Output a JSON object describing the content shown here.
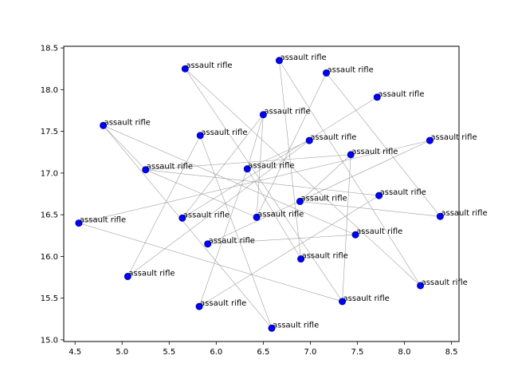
{
  "chart_data": {
    "type": "scatter",
    "title": "",
    "xlabel": "",
    "ylabel": "",
    "xlim": [
      4.38,
      8.58
    ],
    "ylim": [
      14.98,
      18.52
    ],
    "xticks": [
      "4.5",
      "5.0",
      "5.5",
      "6.0",
      "6.5",
      "7.0",
      "7.5",
      "8.0",
      "8.5"
    ],
    "yticks": [
      "15.0",
      "15.5",
      "16.0",
      "16.5",
      "17.0",
      "17.5",
      "18.0",
      "18.5"
    ],
    "grid": false,
    "point_color": "#0000ff",
    "line_color": "#a0a0a0",
    "points": [
      {
        "x": 5.67,
        "y": 18.25,
        "label": "assault rifle"
      },
      {
        "x": 6.67,
        "y": 18.35,
        "label": "assault rifle"
      },
      {
        "x": 7.17,
        "y": 18.2,
        "label": "assault rifle"
      },
      {
        "x": 7.71,
        "y": 17.91,
        "label": "assault rifle"
      },
      {
        "x": 6.5,
        "y": 17.7,
        "label": "assault rifle"
      },
      {
        "x": 4.8,
        "y": 17.57,
        "label": "assault rifle"
      },
      {
        "x": 5.83,
        "y": 17.45,
        "label": "assault rifle"
      },
      {
        "x": 6.99,
        "y": 17.39,
        "label": "assault rifle"
      },
      {
        "x": 8.27,
        "y": 17.39,
        "label": "assault rifle"
      },
      {
        "x": 7.43,
        "y": 17.22,
        "label": "assault rifle"
      },
      {
        "x": 5.25,
        "y": 17.04,
        "label": "assault rifle"
      },
      {
        "x": 6.33,
        "y": 17.05,
        "label": "assault rifle"
      },
      {
        "x": 6.89,
        "y": 16.66,
        "label": "assault rifle"
      },
      {
        "x": 7.73,
        "y": 16.73,
        "label": "assault rifle"
      },
      {
        "x": 8.38,
        "y": 16.48,
        "label": "assault rifle"
      },
      {
        "x": 5.64,
        "y": 16.46,
        "label": "assault rifle"
      },
      {
        "x": 6.43,
        "y": 16.47,
        "label": "assault rifle"
      },
      {
        "x": 4.54,
        "y": 16.4,
        "label": "assault rifle"
      },
      {
        "x": 7.48,
        "y": 16.26,
        "label": "assault rifle"
      },
      {
        "x": 5.91,
        "y": 16.15,
        "label": "assault rifle"
      },
      {
        "x": 6.9,
        "y": 15.97,
        "label": "assault rifle"
      },
      {
        "x": 5.06,
        "y": 15.76,
        "label": "assault rifle"
      },
      {
        "x": 8.17,
        "y": 15.65,
        "label": "assault rifle"
      },
      {
        "x": 7.34,
        "y": 15.46,
        "label": "assault rifle"
      },
      {
        "x": 5.82,
        "y": 15.4,
        "label": "assault rifle"
      },
      {
        "x": 6.59,
        "y": 15.14,
        "label": "assault rifle"
      }
    ],
    "edges": [
      [
        5,
        10
      ],
      [
        10,
        16
      ],
      [
        16,
        4
      ],
      [
        4,
        15
      ],
      [
        15,
        3
      ],
      [
        17,
        8
      ],
      [
        8,
        19
      ],
      [
        19,
        18
      ],
      [
        18,
        5
      ],
      [
        0,
        22
      ],
      [
        22,
        1
      ],
      [
        1,
        20
      ],
      [
        20,
        11
      ],
      [
        11,
        7
      ],
      [
        7,
        21
      ],
      [
        21,
        6
      ],
      [
        6,
        25
      ],
      [
        2,
        14
      ],
      [
        14,
        12
      ],
      [
        12,
        9
      ],
      [
        9,
        23
      ],
      [
        23,
        0
      ],
      [
        10,
        13
      ],
      [
        13,
        24
      ],
      [
        24,
        11
      ],
      [
        11,
        4
      ],
      [
        17,
        23
      ],
      [
        5,
        25
      ],
      [
        16,
        2
      ],
      [
        10,
        9
      ]
    ]
  }
}
